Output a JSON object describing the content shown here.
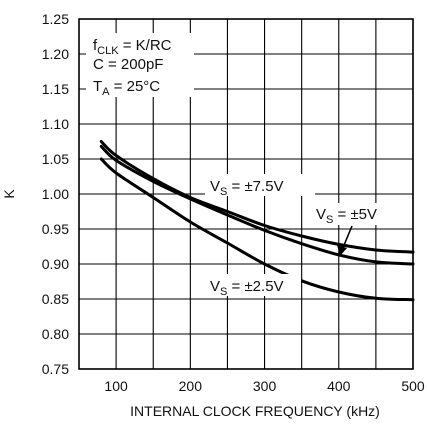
{
  "chart_data": {
    "type": "line",
    "xlabel": "INTERNAL CLOCK FREQUENCY (kHz)",
    "ylabel": "K",
    "xlim": [
      50,
      500
    ],
    "ylim": [
      0.75,
      1.25
    ],
    "xticks": [
      "100",
      "200",
      "300",
      "400",
      "500"
    ],
    "yticks": [
      "0.75",
      "0.80",
      "0.85",
      "0.90",
      "0.95",
      "1.00",
      "1.05",
      "1.10",
      "1.15",
      "1.20",
      "1.25"
    ],
    "grid": true,
    "conditions": {
      "line1_main": "f",
      "line1_sub": "CLK",
      "line1_rest": " = K/RC",
      "line2": "C = 200pF",
      "line3_main": "T",
      "line3_sub": "A",
      "line3_rest": " = 25°C"
    },
    "series": [
      {
        "name": "VS = ±7.5V",
        "label_main": "V",
        "label_sub": "S",
        "label_rest": " = ±7.5V",
        "color": "#000000",
        "x": [
          80,
          100,
          150,
          200,
          250,
          300,
          350,
          400,
          450,
          500
        ],
        "y": [
          1.075,
          1.055,
          1.022,
          0.995,
          0.975,
          0.955,
          0.94,
          0.928,
          0.92,
          0.917
        ]
      },
      {
        "name": "VS = ±5V",
        "label_main": "V",
        "label_sub": "S",
        "label_rest": " = ±5V",
        "color": "#000000",
        "x": [
          80,
          100,
          150,
          200,
          250,
          300,
          350,
          400,
          450,
          500
        ],
        "y": [
          1.068,
          1.048,
          1.018,
          0.993,
          0.97,
          0.948,
          0.929,
          0.913,
          0.903,
          0.9
        ]
      },
      {
        "name": "VS = ±2.5V",
        "label_main": "V",
        "label_sub": "S",
        "label_rest": " = ±2.5V",
        "color": "#000000",
        "x": [
          80,
          100,
          150,
          200,
          250,
          300,
          350,
          400,
          450,
          500
        ],
        "y": [
          1.05,
          1.03,
          0.995,
          0.96,
          0.93,
          0.9,
          0.876,
          0.86,
          0.851,
          0.849
        ]
      }
    ]
  }
}
